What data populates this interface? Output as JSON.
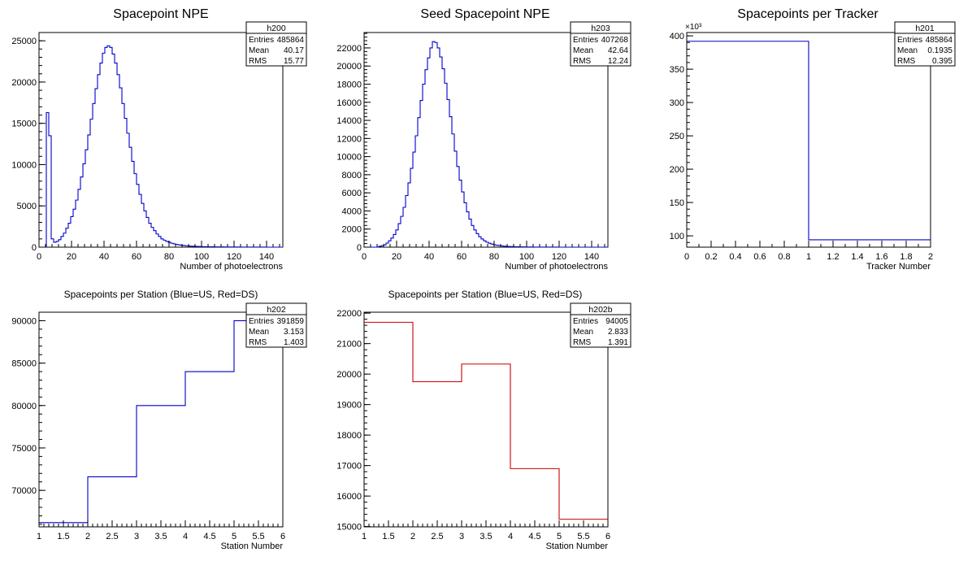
{
  "chart_data": [
    {
      "type": "histogram",
      "title": "Spacepoint NPE",
      "xlabel": "Number of photoelectrons",
      "ylabel": "",
      "xlim": [
        0,
        150
      ],
      "ylim": [
        0,
        26000
      ],
      "xticks": [
        0,
        20,
        40,
        60,
        80,
        100,
        120,
        140
      ],
      "yticks": [
        0,
        5000,
        10000,
        15000,
        20000,
        25000
      ],
      "bin_width": 1.5,
      "color": "#0000cc",
      "values": [
        0,
        0,
        0,
        16300,
        13500,
        1000,
        600,
        700,
        900,
        1300,
        1700,
        2300,
        2900,
        3700,
        4600,
        5700,
        7000,
        8500,
        10100,
        11800,
        13600,
        15500,
        17400,
        19200,
        20900,
        22300,
        23500,
        24200,
        24400,
        24200,
        23400,
        22300,
        20900,
        19300,
        17400,
        15600,
        13800,
        12100,
        10400,
        8900,
        7600,
        6400,
        5300,
        4400,
        3600,
        2900,
        2400,
        2000,
        1600,
        1300,
        1000,
        850,
        700,
        600,
        480,
        400,
        330,
        280,
        230,
        200,
        160,
        140,
        120,
        100,
        90,
        80,
        70,
        60,
        55,
        50,
        45,
        40,
        36,
        33,
        30,
        27,
        25,
        22,
        20,
        18,
        16,
        14,
        12,
        10,
        9,
        8,
        7,
        6,
        5,
        4,
        3,
        2,
        2,
        1,
        1,
        0,
        0,
        0,
        0,
        0
      ],
      "stats": {
        "name": "h200",
        "rows": [
          [
            "Entries",
            "485864"
          ],
          [
            "Mean",
            "40.17"
          ],
          [
            "RMS",
            "15.77"
          ]
        ]
      }
    },
    {
      "type": "histogram",
      "title": "Seed Spacepoint NPE",
      "xlabel": "Number of photoelectrons",
      "ylabel": "",
      "xlim": [
        0,
        150
      ],
      "ylim": [
        0,
        23700
      ],
      "xticks": [
        0,
        20,
        40,
        60,
        80,
        100,
        120,
        140
      ],
      "yticks": [
        0,
        2000,
        4000,
        6000,
        8000,
        10000,
        12000,
        14000,
        16000,
        18000,
        20000,
        22000
      ],
      "bin_width": 1.5,
      "color": "#0000cc",
      "values": [
        0,
        0,
        0,
        0,
        0,
        0,
        100,
        150,
        250,
        450,
        700,
        1000,
        1400,
        1900,
        2600,
        3400,
        4400,
        5700,
        7100,
        8700,
        10500,
        12300,
        14300,
        16200,
        18000,
        19600,
        20900,
        22000,
        22700,
        22600,
        22000,
        21000,
        19700,
        18100,
        16300,
        14400,
        12500,
        10600,
        8900,
        7400,
        6100,
        4900,
        3900,
        3100,
        2400,
        1900,
        1500,
        1150,
        900,
        700,
        550,
        430,
        340,
        270,
        210,
        170,
        140,
        110,
        90,
        75,
        62,
        50,
        42,
        35,
        29,
        24,
        20,
        17,
        14,
        12,
        10,
        8,
        7,
        6,
        5,
        4,
        3,
        3,
        2,
        2,
        1,
        1,
        1,
        0,
        0,
        0,
        0,
        0,
        0,
        0,
        0,
        0,
        0,
        0,
        0,
        0,
        0,
        0,
        0,
        0
      ],
      "stats": {
        "name": "h203",
        "rows": [
          [
            "Entries",
            "407268"
          ],
          [
            "Mean",
            "42.64"
          ],
          [
            "RMS",
            "12.24"
          ]
        ]
      }
    },
    {
      "type": "histogram",
      "title": "Spacepoints per Tracker",
      "xlabel": "Tracker Number",
      "ylabel": "",
      "exponent": "×10³",
      "xlim": [
        0,
        2
      ],
      "ylim": [
        83,
        405
      ],
      "xticks": [
        0,
        0.2,
        0.4,
        0.6,
        0.8,
        1,
        1.2,
        1.4,
        1.6,
        1.8,
        2
      ],
      "yticks": [
        100,
        150,
        200,
        250,
        300,
        350,
        400
      ],
      "bin_width": 1,
      "color": "#0000cc",
      "values": [
        391.9,
        94.0
      ],
      "stats": {
        "name": "h201",
        "rows": [
          [
            "Entries",
            "485864"
          ],
          [
            "Mean",
            "0.1935"
          ],
          [
            "RMS",
            "0.395"
          ]
        ]
      }
    },
    {
      "type": "histogram",
      "title": "Spacepoints per Station (Blue=US, Red=DS)",
      "xlabel": "Station Number",
      "ylabel": "",
      "xlim": [
        1,
        6
      ],
      "ylim": [
        65700,
        91000
      ],
      "xticks": [
        1,
        1.5,
        2,
        2.5,
        3,
        3.5,
        4,
        4.5,
        5,
        5.5,
        6
      ],
      "yticks": [
        70000,
        75000,
        80000,
        85000,
        90000
      ],
      "bin_width": 1,
      "color": "#0000cc",
      "values": [
        66200,
        71600,
        80000,
        84000,
        90000
      ],
      "stats": {
        "name": "h202",
        "rows": [
          [
            "Entries",
            "391859"
          ],
          [
            "Mean",
            "3.153"
          ],
          [
            "RMS",
            "1.403"
          ]
        ]
      }
    },
    {
      "type": "histogram",
      "title": "Spacepoints per Station (Blue=US, Red=DS)",
      "xlabel": "Station Number",
      "ylabel": "",
      "xlim": [
        1,
        6
      ],
      "ylim": [
        14990,
        22030
      ],
      "xticks": [
        1,
        1.5,
        2,
        2.5,
        3,
        3.5,
        4,
        4.5,
        5,
        5.5,
        6
      ],
      "yticks": [
        15000,
        16000,
        17000,
        18000,
        19000,
        20000,
        21000,
        22000
      ],
      "bin_width": 1,
      "color": "#cc0000",
      "values": [
        21700,
        19750,
        20330,
        16900,
        15240
      ],
      "stats": {
        "name": "h202b",
        "rows": [
          [
            "Entries",
            "94005"
          ],
          [
            "Mean",
            "2.833"
          ],
          [
            "RMS",
            "1.391"
          ]
        ]
      }
    }
  ]
}
